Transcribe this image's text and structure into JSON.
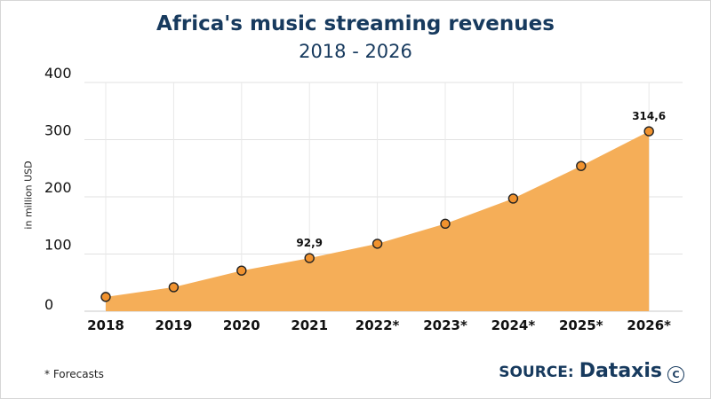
{
  "header": {
    "title": "Africa's music streaming revenues",
    "subtitle": "2018 - 2026"
  },
  "chart_data": {
    "type": "area",
    "title": "Africa's music streaming revenues",
    "subtitle": "2018 - 2026",
    "xlabel": "",
    "ylabel": "in million USD",
    "categories": [
      "2018",
      "2019",
      "2020",
      "2021",
      "2022*",
      "2023*",
      "2024*",
      "2025*",
      "2026*"
    ],
    "values": [
      25,
      42,
      71,
      92.9,
      118,
      153,
      197,
      254,
      314.6
    ],
    "data_labels": [
      {
        "index": 3,
        "text": "92,9"
      },
      {
        "index": 8,
        "text": "314,6"
      }
    ],
    "ylim": [
      0,
      400
    ],
    "yticks": [
      "0",
      "100",
      "200",
      "300",
      "400"
    ],
    "grid": true,
    "fill_color": "#f5ae58",
    "marker_color": "#f0922e",
    "marker_edge_color": "#222222"
  },
  "footer": {
    "footnote": "* Forecasts",
    "source_label": "SOURCE:",
    "source_brand": "Dataxis",
    "copyright_symbol": "C"
  }
}
